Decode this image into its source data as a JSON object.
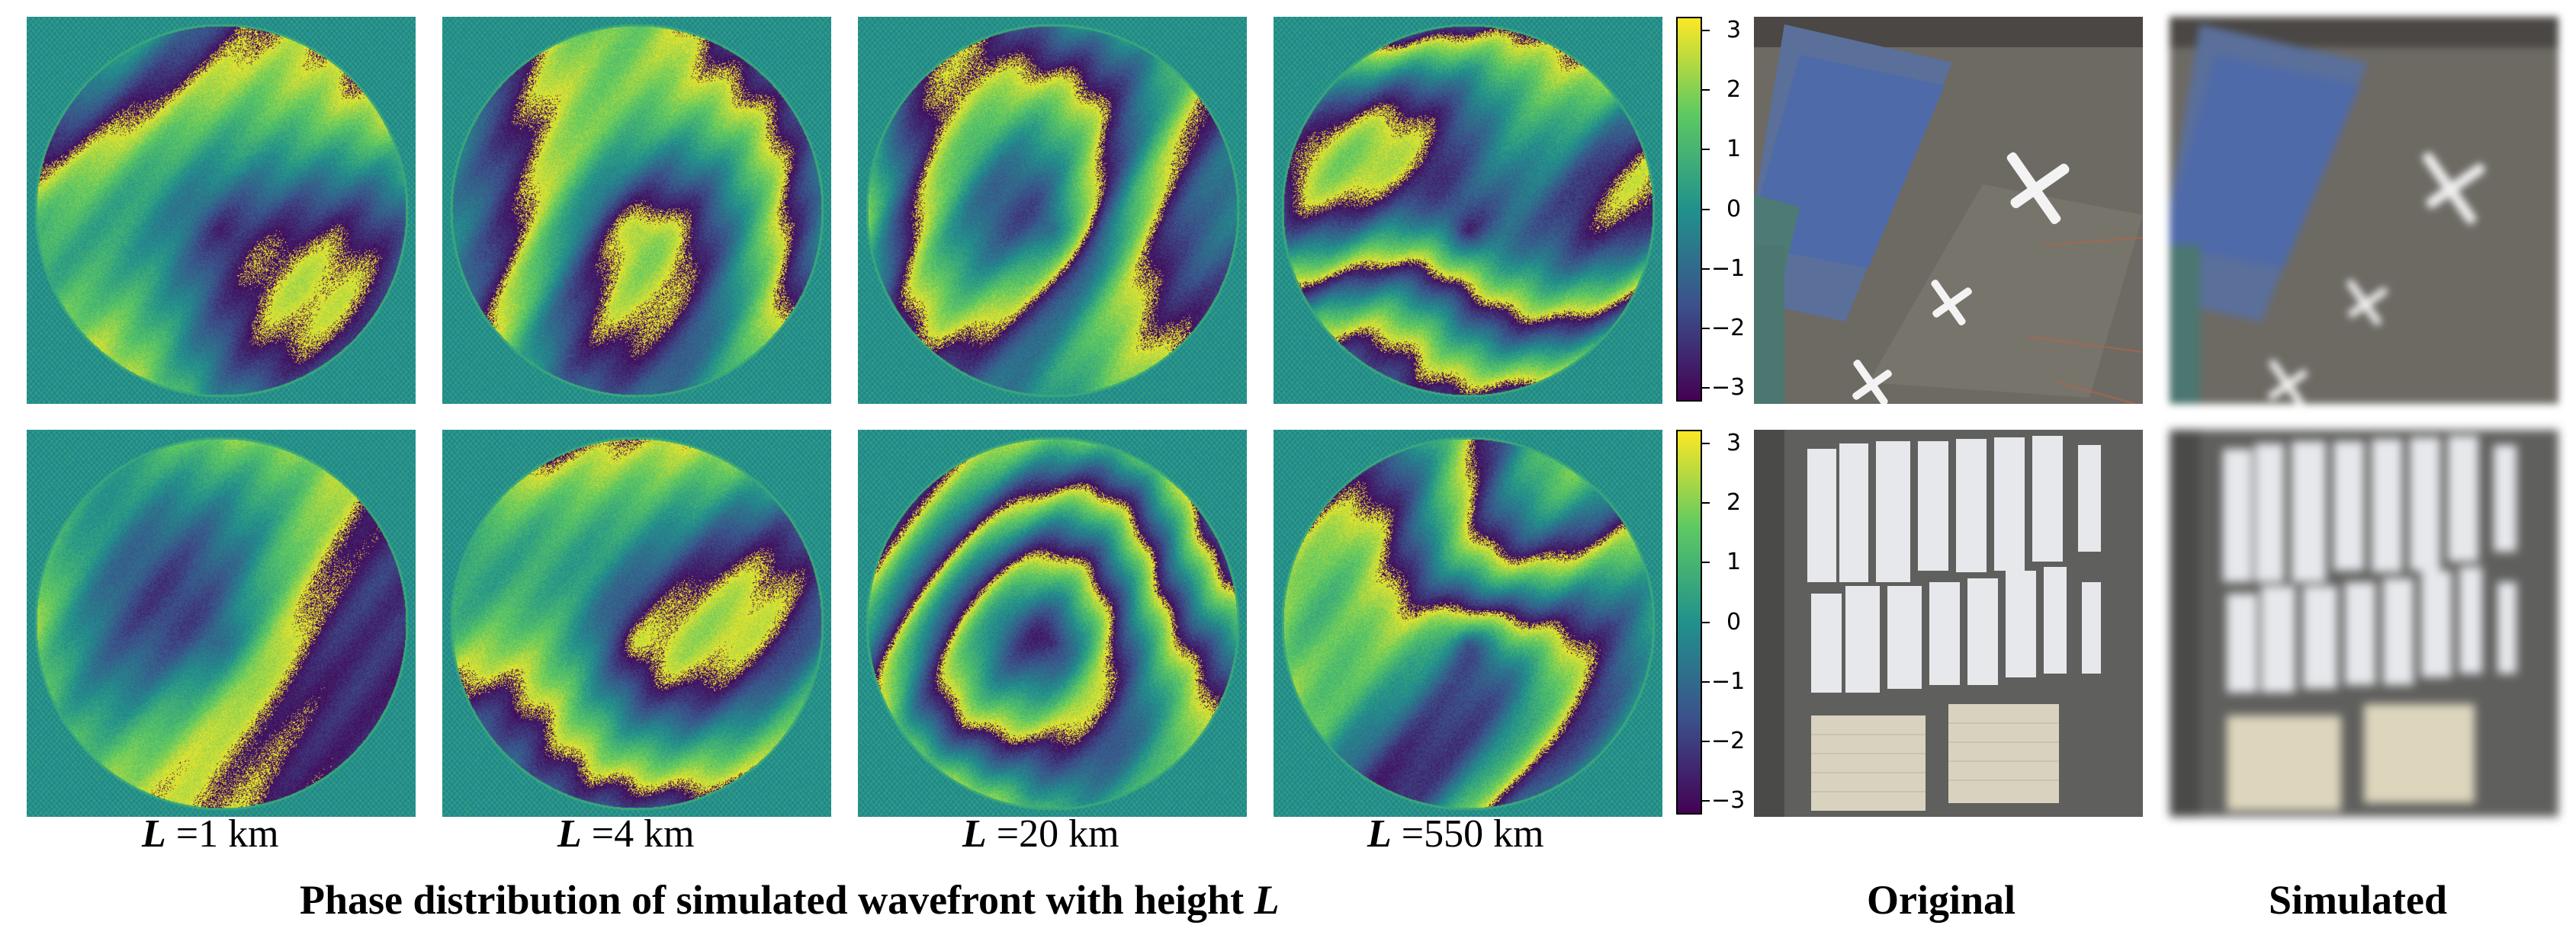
{
  "figure": {
    "height_labels": [
      {
        "prefix": "L",
        "text": " =1 km"
      },
      {
        "prefix": "L",
        "text": " =4 km"
      },
      {
        "prefix": "L",
        "text": " =20 km"
      },
      {
        "prefix": "L",
        "text": " =550 km"
      }
    ],
    "phase_caption_text": "Phase distribution of simulated wavefront with height ",
    "phase_caption_var": "L",
    "original_caption": "Original",
    "simulated_caption": "Simulated",
    "colorbar_ticks": [
      "3",
      "2",
      "1",
      "0",
      "−1",
      "−2",
      "−3"
    ],
    "colormap": [
      "#440154",
      "#3b528b",
      "#21918c",
      "#5ec962",
      "#fde725"
    ],
    "background_color": "#21918c",
    "ring_color": "#37a58a"
  }
}
